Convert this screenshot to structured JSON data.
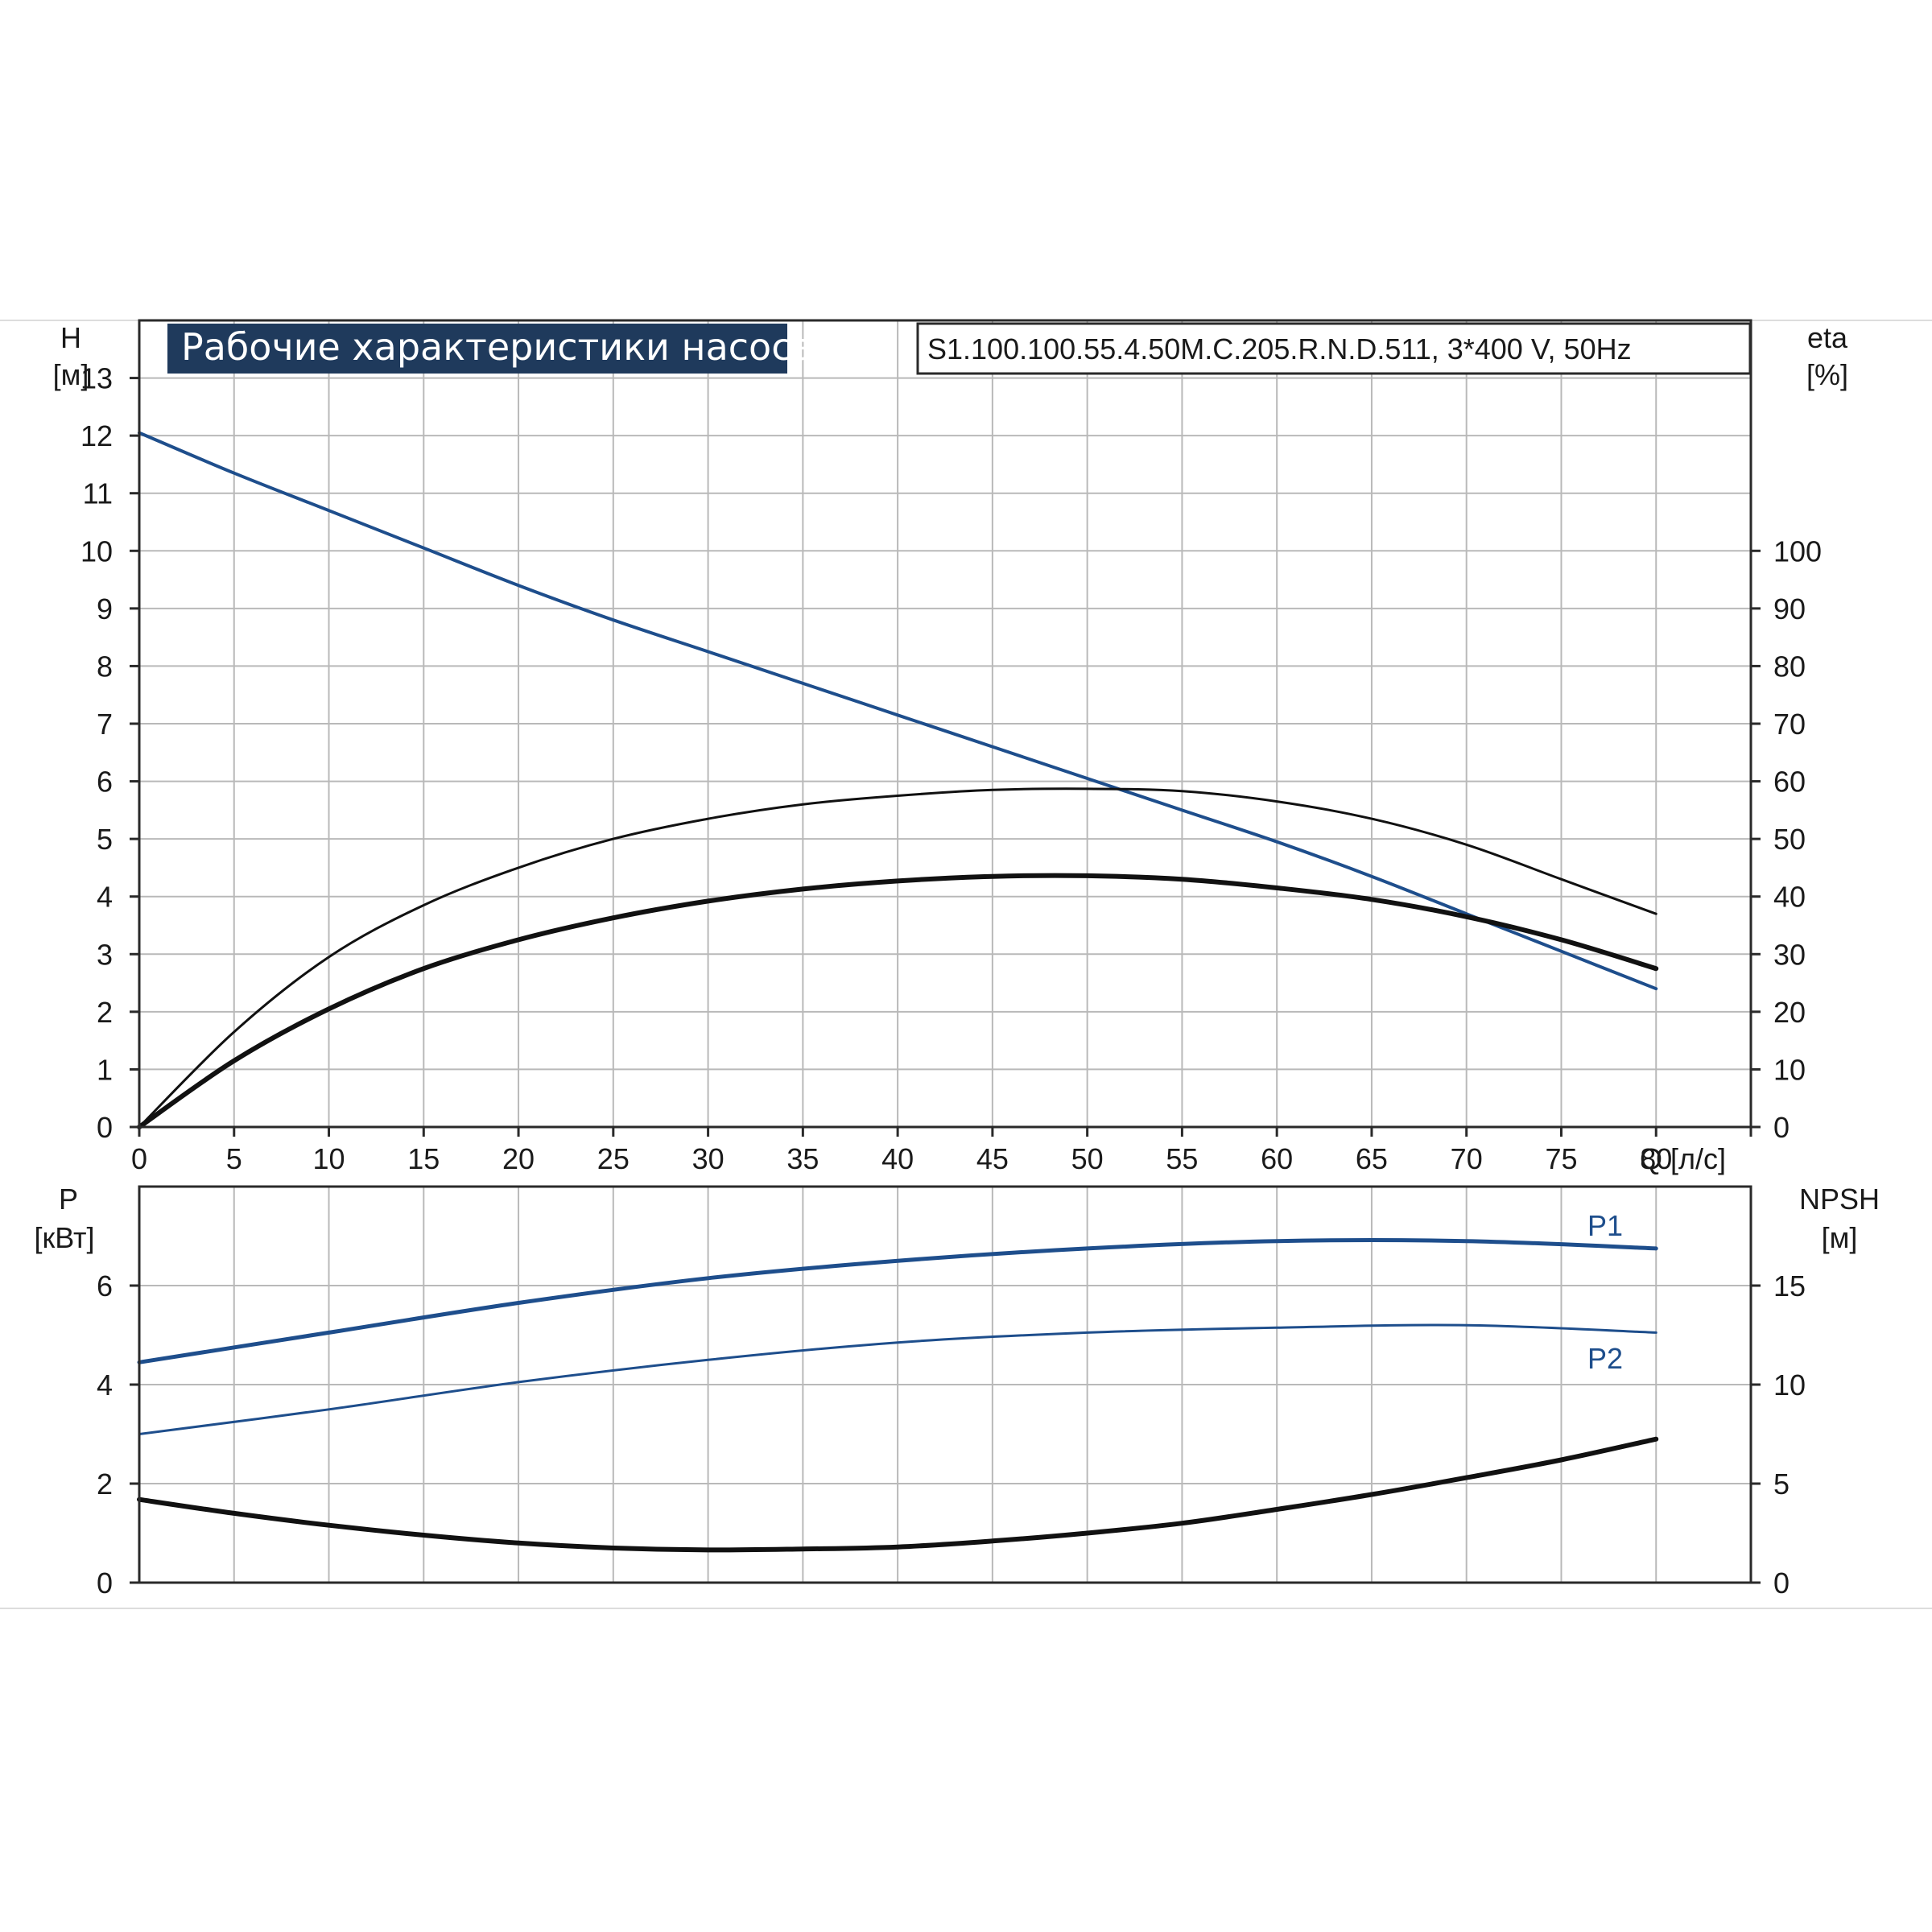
{
  "title": "Рабочие характеристики насоса",
  "model": "S1.100.100.55.4.50M.C.205.R.N.D.511, 3*400 V, 50Hz",
  "colors": {
    "blue": "#1e4e8c",
    "black": "#111111",
    "title_bg": "#1f3a5c"
  },
  "chart_data": [
    {
      "type": "line",
      "name": "top-panel",
      "xlabel": "Q [л/с]",
      "xlim": [
        0,
        85
      ],
      "xticks": [
        0,
        5,
        10,
        15,
        20,
        25,
        30,
        35,
        40,
        45,
        50,
        55,
        60,
        65,
        70,
        75,
        80
      ],
      "ylabel_left": {
        "name": "H",
        "unit": "[м]"
      },
      "ylim_left": [
        0,
        14
      ],
      "yticks_left": [
        0,
        1,
        2,
        3,
        4,
        5,
        6,
        7,
        8,
        9,
        10,
        11,
        12,
        13
      ],
      "ylabel_right": {
        "name": "eta",
        "unit": "[%]"
      },
      "ylim_right": [
        0,
        140
      ],
      "yticks_right": [
        0,
        10,
        20,
        30,
        40,
        50,
        60,
        70,
        80,
        90,
        100
      ],
      "grid": true,
      "series": [
        {
          "axis": "left",
          "color": "blue",
          "width": 4,
          "x": [
            0,
            5,
            10,
            15,
            20,
            25,
            30,
            35,
            40,
            45,
            50,
            55,
            60,
            65,
            70,
            75,
            80
          ],
          "values": [
            12.05,
            11.35,
            10.7,
            10.05,
            9.4,
            8.8,
            8.25,
            7.7,
            7.15,
            6.6,
            6.05,
            5.5,
            4.95,
            4.35,
            3.7,
            3.05,
            2.4
          ]
        },
        {
          "axis": "right",
          "color": "black",
          "width": 3,
          "x": [
            0,
            5,
            10,
            15,
            20,
            25,
            30,
            35,
            40,
            45,
            50,
            55,
            60,
            65,
            70,
            75,
            80
          ],
          "values": [
            0,
            16.5,
            29.5,
            38.5,
            45,
            50,
            53.5,
            56,
            57.5,
            58.5,
            58.7,
            58.3,
            56.5,
            53.5,
            49,
            43,
            37
          ]
        },
        {
          "axis": "right",
          "color": "black",
          "width": 6,
          "x": [
            0,
            5,
            10,
            15,
            20,
            25,
            30,
            35,
            40,
            45,
            50,
            55,
            60,
            65,
            70,
            75,
            80
          ],
          "values": [
            0,
            11.5,
            20.5,
            27.5,
            32.5,
            36.3,
            39.2,
            41.3,
            42.7,
            43.5,
            43.6,
            43,
            41.5,
            39.5,
            36.5,
            32.5,
            27.5
          ]
        }
      ]
    },
    {
      "type": "line",
      "name": "bottom-panel",
      "xlim": [
        0,
        85
      ],
      "ylabel_left": {
        "name": "P",
        "unit": "[кВт]"
      },
      "ylim_left": [
        0,
        8
      ],
      "yticks_left": [
        0,
        2,
        4,
        6
      ],
      "ylabel_right": {
        "name": "NPSH",
        "unit": "[м]"
      },
      "ylim_right": [
        0,
        20
      ],
      "yticks_right": [
        0,
        5,
        10,
        15
      ],
      "grid": true,
      "series": [
        {
          "name": "P1",
          "axis": "left",
          "color": "blue",
          "width": 5,
          "x": [
            0,
            10,
            20,
            30,
            40,
            50,
            60,
            70,
            80
          ],
          "values": [
            4.45,
            5.05,
            5.65,
            6.15,
            6.5,
            6.75,
            6.9,
            6.9,
            6.75
          ]
        },
        {
          "name": "P2",
          "axis": "left",
          "color": "blue",
          "width": 3,
          "x": [
            0,
            10,
            20,
            30,
            40,
            50,
            60,
            70,
            80
          ],
          "values": [
            3.0,
            3.5,
            4.05,
            4.5,
            4.85,
            5.05,
            5.15,
            5.2,
            5.05
          ]
        },
        {
          "axis": "right",
          "color": "black",
          "width": 6,
          "x": [
            0,
            5,
            10,
            15,
            20,
            25,
            30,
            35,
            40,
            45,
            50,
            55,
            60,
            65,
            70,
            75,
            80
          ],
          "values": [
            4.2,
            3.5,
            2.9,
            2.4,
            2.0,
            1.75,
            1.65,
            1.7,
            1.8,
            2.1,
            2.5,
            3.0,
            3.7,
            4.45,
            5.3,
            6.2,
            7.25
          ]
        }
      ]
    }
  ]
}
